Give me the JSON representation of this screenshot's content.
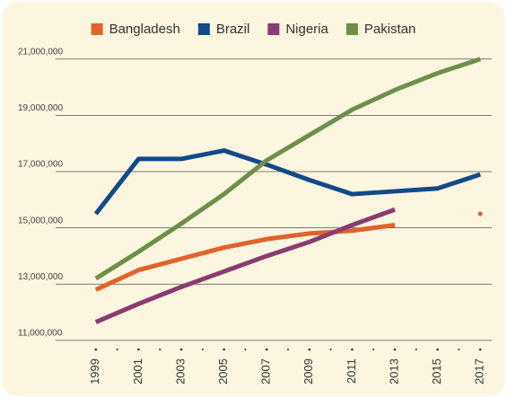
{
  "chart_data": {
    "type": "line",
    "x": [
      1999,
      2001,
      2003,
      2005,
      2007,
      2009,
      2011,
      2013,
      2015,
      2017
    ],
    "series": [
      {
        "name": "Bangladesh",
        "color": "#e2622b",
        "values": [
          12800000,
          13500000,
          13900000,
          14300000,
          14600000,
          14800000,
          14900000,
          15100000,
          null,
          15500000
        ]
      },
      {
        "name": "Brazil",
        "color": "#124a88",
        "values": [
          15500000,
          17450000,
          17450000,
          17750000,
          17250000,
          16700000,
          16200000,
          16300000,
          16400000,
          16900000
        ]
      },
      {
        "name": "Nigeria",
        "color": "#8a3b72",
        "values": [
          11650000,
          12300000,
          12900000,
          13450000,
          14000000,
          14500000,
          15100000,
          15650000,
          null,
          null
        ]
      },
      {
        "name": "Pakistan",
        "color": "#6e8f4b",
        "values": [
          13200000,
          14150000,
          15150000,
          16200000,
          17400000,
          18300000,
          19200000,
          19900000,
          20500000,
          21000000
        ]
      }
    ],
    "xlim": [
      1998,
      2018
    ],
    "xticks": [
      1999,
      2001,
      2003,
      2005,
      2007,
      2009,
      2011,
      2013,
      2015,
      2017
    ],
    "xminorticks": [
      2000,
      2002,
      2004,
      2006,
      2008,
      2010,
      2012,
      2014,
      2016
    ],
    "ylim": [
      10900000,
      21600000
    ],
    "yticks": [
      {
        "value": 11000000,
        "label": "11,000,000"
      },
      {
        "value": 13000000,
        "label": "13,000,000"
      },
      {
        "value": 15000000,
        "label": "15,000,000"
      },
      {
        "value": 17000000,
        "label": "17,000,000"
      },
      {
        "value": 19000000,
        "label": "19,000,000"
      },
      {
        "value": 21000000,
        "label": "21,000,000"
      }
    ],
    "grid": true,
    "legend": "top"
  }
}
